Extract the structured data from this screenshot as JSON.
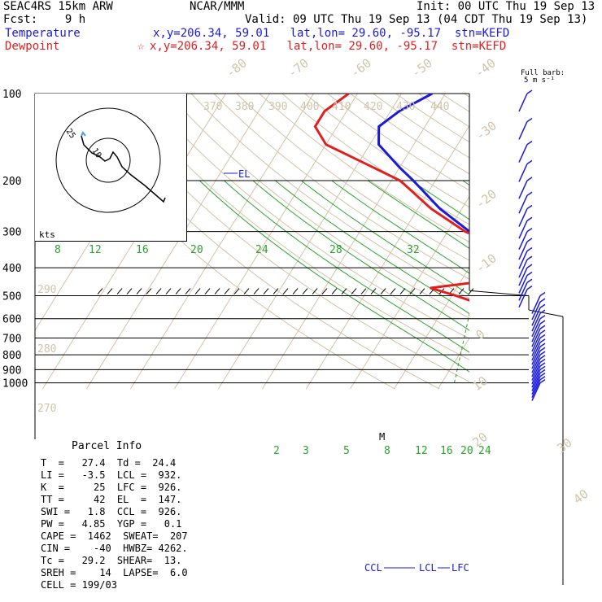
{
  "header": {
    "line1_left": "SEAC4RS 15km ARW",
    "line1_mid": "NCAR/MMM",
    "line1_right": "Init: 00 UTC Thu 19 Sep 13",
    "line2_left": "Fcst:    9 h",
    "line2_right": "Valid: 09 UTC Thu 19 Sep 13 (04 CDT Thu 19 Sep 13)",
    "line3_label": "Temperature",
    "line3_info": "x,y=206.34, 59.01   lat,lon= 29.60, -95.17  stn=KEFD",
    "line4_label": "Dewpoint",
    "line4_star": "☆",
    "line4_info": "x,y=206.34, 59.01   lat,lon= 29.60, -95.17  stn=KEFD"
  },
  "barb_legend": {
    "line1": "Full barb:",
    "line2": "5 m s⁻¹"
  },
  "parcel_info": {
    "title": "Parcel Info",
    "rows": [
      "T  =   27.4  Td =  24.4",
      "LI =   -3.5  LCL =  932.",
      "K  =     25  LFC =  926.",
      "TT =     42  EL  =  147.",
      "SWI =   1.8  CCL =  926.",
      "PW =   4.85  YGP =   0.1",
      "CAPE =  1462  SWEAT=  207",
      "CIN =    -40  HWBZ= 4262.",
      "Tc =   29.2  SHEAR=  13.",
      "SREH =    14  LAPSE=  6.0",
      "CELL = 199/03"
    ]
  },
  "chart_data": {
    "type": "line",
    "subtype": "skew-T log-p sounding",
    "y_axis": {
      "scale": "log",
      "ylim": [
        1000,
        100
      ],
      "ticks": [
        "100",
        "200",
        "300",
        "400",
        "500",
        "600",
        "700",
        "800",
        "900",
        "1000"
      ]
    },
    "isotherm_labels": [
      "-80",
      "-70",
      "-60",
      "-50",
      "-40",
      "-30",
      "-20",
      "-10",
      "0",
      "10",
      "20",
      "30",
      "40"
    ],
    "theta_labels": [
      "370",
      "380",
      "390",
      "400",
      "410",
      "420",
      "430",
      "440",
      "290",
      "280",
      "270"
    ],
    "mixing_ratio_labels_top": [
      "8",
      "12",
      "16",
      "20",
      "24",
      "28",
      "32"
    ],
    "mixing_ratio_labels_bottom": [
      "2",
      "3",
      "5",
      "8",
      "12",
      "16",
      "20",
      "24"
    ],
    "annotations": [
      "EL",
      "M",
      "CCL",
      "LCL",
      "LFC"
    ],
    "hodograph": {
      "kts_label": "kts",
      "ring_labels": [
        "25",
        "10"
      ]
    },
    "series": [
      {
        "name": "Temperature",
        "color": "#1a1adc",
        "p": [
          1000,
          950,
          925,
          900,
          850,
          800,
          700,
          600,
          500,
          400,
          350,
          300,
          250,
          200,
          180,
          150,
          130,
          115,
          100
        ],
        "t": [
          27.4,
          23.5,
          22.0,
          20.6,
          17.8,
          15.0,
          8.5,
          1.0,
          -7.5,
          -19.0,
          -26.0,
          -35.0,
          -45.0,
          -55.0,
          -60.0,
          -68.0,
          -70.5,
          -68.0,
          -63.0
        ]
      },
      {
        "name": "Dewpoint",
        "color": "#e02020",
        "p": [
          1000,
          960,
          935,
          900,
          860,
          800,
          780,
          700,
          650,
          600,
          560,
          500,
          470,
          440,
          400,
          350,
          300,
          250,
          200,
          180,
          150,
          130,
          115,
          100
        ],
        "t": [
          24.4,
          23.0,
          21.5,
          17.0,
          10.0,
          1.0,
          -3.0,
          -6.0,
          -3.5,
          -11.0,
          -17.5,
          -29.0,
          -36.0,
          -22.0,
          -11.0,
          -23.0,
          -36.0,
          -47.0,
          -58.0,
          -66.0,
          -80.0,
          -85.0,
          -85.0,
          -82.0
        ]
      }
    ]
  }
}
